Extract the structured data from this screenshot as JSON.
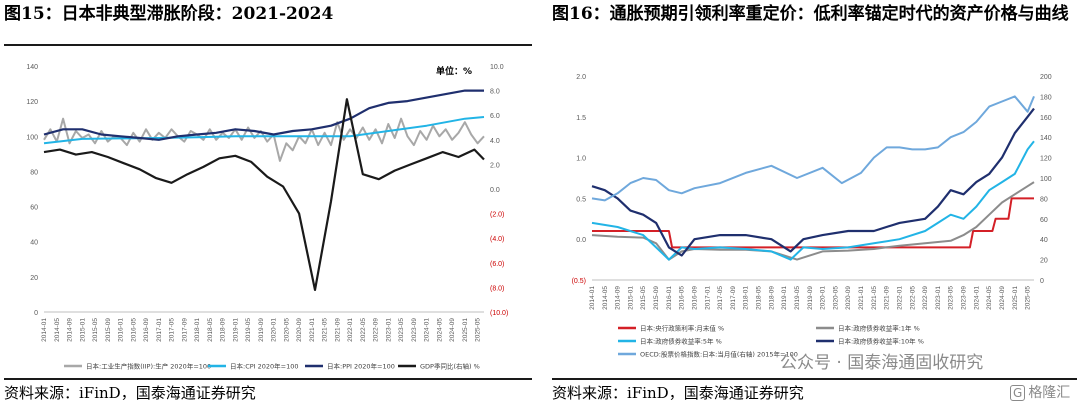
{
  "left": {
    "title": "图15：日本非典型滞胀阶段：2021-2024",
    "source": "资料来源：iFinD，国泰海通证券研究",
    "chart_data": {
      "type": "line",
      "unit_note": "单位：%",
      "x_ticks": [
        "2014-01",
        "2014-05",
        "2014-09",
        "2015-01",
        "2015-05",
        "2015-09",
        "2016-01",
        "2016-05",
        "2016-09",
        "2017-01",
        "2017-05",
        "2017-09",
        "2018-01",
        "2018-05",
        "2018-09",
        "2019-01",
        "2019-05",
        "2019-09",
        "2020-01",
        "2020-05",
        "2020-09",
        "2021-01",
        "2021-05",
        "2021-09",
        "2022-01",
        "2022-05",
        "2022-09",
        "2023-01",
        "2023-05",
        "2023-09",
        "2024-01",
        "2024-05",
        "2024-09",
        "2025-01",
        "2025-05"
      ],
      "y_left": {
        "range": [
          0,
          140
        ],
        "ticks": [
          "0",
          "20",
          "40",
          "60",
          "80",
          "100",
          "120",
          "140"
        ]
      },
      "y_right": {
        "range": [
          -10,
          10
        ],
        "ticks": [
          "10.0",
          "8.0",
          "6.0",
          "4.0",
          "2.0",
          "0.0",
          "(2.0)",
          "(4.0)",
          "(6.0)",
          "(8.0)",
          "(10.0)"
        ],
        "negative_color": "#cc0000"
      },
      "series": [
        {
          "name": "日本:工业生产指数(IIP):生产 2020年=100",
          "color": "#a8a8a8",
          "axis": "left",
          "x": [
            0,
            2,
            4,
            6,
            8,
            10,
            12,
            14,
            16,
            18,
            20,
            22,
            24,
            26,
            28,
            30,
            32,
            34,
            36,
            38,
            40,
            42,
            44,
            46,
            48,
            50,
            52,
            54,
            56,
            58,
            60,
            62,
            64,
            66,
            68,
            70,
            72,
            74,
            76,
            78,
            80,
            82,
            84,
            86,
            88,
            90,
            92,
            94,
            96,
            98,
            100,
            102,
            104,
            106,
            108,
            110,
            112,
            114,
            116,
            118,
            120,
            122,
            124,
            126,
            128,
            130,
            132,
            134,
            136,
            138
          ],
          "values": [
            98,
            104,
            97,
            110,
            96,
            103,
            99,
            101,
            96,
            103,
            97,
            100,
            99,
            95,
            102,
            97,
            104,
            98,
            102,
            99,
            104,
            100,
            97,
            103,
            101,
            98,
            104,
            98,
            102,
            99,
            104,
            98,
            105,
            99,
            103,
            97,
            101,
            86,
            96,
            92,
            100,
            96,
            104,
            95,
            102,
            95,
            108,
            98,
            104,
            99,
            105,
            98,
            104,
            96,
            107,
            99,
            110,
            100,
            95,
            103,
            98,
            106,
            100,
            104,
            98,
            102,
            108,
            101,
            96,
            100
          ]
        },
        {
          "name": "日本:CPI 2020年=100",
          "color": "#22b4e6",
          "axis": "left",
          "x": [
            0,
            12,
            24,
            36,
            48,
            60,
            72,
            84,
            96,
            108,
            120,
            132,
            138
          ],
          "values": [
            96,
            98.5,
            98.8,
            99,
            99.5,
            100,
            100,
            100,
            100,
            103,
            106,
            110,
            111
          ]
        },
        {
          "name": "日本:PPI 2020年=100",
          "color": "#1f2f6e",
          "axis": "left",
          "x": [
            0,
            6,
            12,
            18,
            24,
            30,
            36,
            42,
            48,
            54,
            60,
            66,
            72,
            78,
            84,
            90,
            96,
            102,
            108,
            114,
            120,
            126,
            132,
            138
          ],
          "values": [
            101,
            104,
            104,
            101,
            100,
            99,
            98,
            100,
            101,
            102,
            104,
            103,
            101,
            103,
            104,
            106,
            110,
            116,
            119,
            120,
            122,
            124,
            126,
            126
          ]
        },
        {
          "name": "GDP季同比(右轴) %",
          "color": "#1a1a1a",
          "axis": "right",
          "x": [
            0,
            5,
            10,
            15,
            20,
            25,
            30,
            35,
            40,
            45,
            50,
            55,
            60,
            65,
            70,
            75,
            80,
            85,
            90,
            95,
            100,
            105,
            110,
            115,
            120,
            125,
            130,
            135,
            138
          ],
          "values": [
            3.0,
            3.2,
            2.8,
            3.0,
            2.6,
            2.1,
            1.6,
            0.9,
            0.5,
            1.2,
            1.8,
            2.5,
            2.7,
            2.2,
            1.0,
            0.2,
            -2.0,
            -8.2,
            -1.0,
            7.3,
            1.2,
            0.8,
            1.5,
            2.0,
            2.5,
            3.0,
            2.6,
            3.2,
            2.4
          ]
        }
      ],
      "legend_placement": "bottom"
    }
  },
  "right": {
    "title": "图16：通胀预期引领利率重定价：低利率锚定时代的资产价格与曲线",
    "source": "资料来源：iFinD，国泰海通证券研究",
    "chart_data": {
      "type": "line",
      "x_ticks": [
        "2014-01",
        "2014-05",
        "2014-09",
        "2015-01",
        "2015-05",
        "2015-09",
        "2016-01",
        "2016-05",
        "2016-09",
        "2017-01",
        "2017-05",
        "2017-09",
        "2018-01",
        "2018-05",
        "2018-09",
        "2019-01",
        "2019-05",
        "2019-09",
        "2020-01",
        "2020-05",
        "2020-09",
        "2021-01",
        "2021-05",
        "2021-09",
        "2022-01",
        "2022-05",
        "2022-09",
        "2023-01",
        "2023-05",
        "2023-09",
        "2024-01",
        "2024-05",
        "2024-09",
        "2025-01",
        "2025-05"
      ],
      "y_left": {
        "range": [
          -0.5,
          2.0
        ],
        "ticks": [
          "2.0",
          "1.5",
          "1.0",
          "0.5",
          "0.0",
          "(0.5)"
        ],
        "negative_color": "#cc0000"
      },
      "y_right": {
        "range": [
          0,
          200
        ],
        "ticks": [
          "200",
          "180",
          "160",
          "140",
          "120",
          "100",
          "80",
          "60",
          "40",
          "20",
          "0"
        ]
      },
      "series": [
        {
          "name": "日本:央行政策利率:月末值 %",
          "color": "#d42027",
          "axis": "left",
          "x": [
            0,
            24,
            25,
            118,
            119,
            125,
            126,
            130,
            131,
            138
          ],
          "values": [
            0.1,
            0.1,
            -0.1,
            -0.1,
            0.1,
            0.1,
            0.25,
            0.25,
            0.5,
            0.5
          ]
        },
        {
          "name": "日本:政府债券收益率:1年 %",
          "color": "#8c8c8c",
          "axis": "left",
          "x": [
            0,
            8,
            16,
            20,
            24,
            28,
            32,
            40,
            48,
            56,
            64,
            72,
            80,
            88,
            96,
            104,
            112,
            116,
            120,
            124,
            128,
            132,
            136,
            138
          ],
          "values": [
            0.05,
            0.03,
            0.02,
            -0.05,
            -0.25,
            -0.15,
            -0.12,
            -0.13,
            -0.13,
            -0.15,
            -0.25,
            -0.15,
            -0.14,
            -0.12,
            -0.08,
            -0.05,
            -0.02,
            0.05,
            0.15,
            0.3,
            0.45,
            0.55,
            0.65,
            0.7
          ]
        },
        {
          "name": "日本:政府债券收益率:5年 %",
          "color": "#22b4e6",
          "axis": "left",
          "x": [
            0,
            8,
            16,
            20,
            24,
            28,
            32,
            40,
            48,
            56,
            62,
            66,
            72,
            80,
            88,
            96,
            104,
            108,
            112,
            116,
            120,
            124,
            128,
            132,
            136,
            138
          ],
          "values": [
            0.2,
            0.15,
            0.05,
            -0.1,
            -0.25,
            -0.1,
            -0.12,
            -0.1,
            -0.12,
            -0.15,
            -0.25,
            -0.1,
            -0.12,
            -0.1,
            -0.05,
            0.0,
            0.1,
            0.2,
            0.3,
            0.25,
            0.4,
            0.6,
            0.7,
            0.8,
            1.1,
            1.2
          ]
        },
        {
          "name": "日本:政府债券收益率:10年 %",
          "color": "#1f2f6e",
          "axis": "left",
          "x": [
            0,
            4,
            8,
            12,
            16,
            20,
            24,
            28,
            32,
            40,
            48,
            56,
            62,
            66,
            72,
            80,
            88,
            96,
            104,
            108,
            112,
            116,
            120,
            124,
            128,
            132,
            136,
            138
          ],
          "values": [
            0.65,
            0.6,
            0.5,
            0.35,
            0.3,
            0.2,
            -0.1,
            -0.2,
            0.0,
            0.05,
            0.05,
            0.0,
            -0.15,
            0.0,
            0.05,
            0.1,
            0.1,
            0.2,
            0.25,
            0.4,
            0.6,
            0.55,
            0.7,
            0.8,
            1.0,
            1.3,
            1.5,
            1.6
          ]
        },
        {
          "name": "OECD:股票价格指数:日本:当月值(右轴) 2015年=100",
          "color": "#6fa8dc",
          "axis": "right",
          "x": [
            0,
            4,
            8,
            12,
            16,
            20,
            24,
            28,
            32,
            40,
            48,
            56,
            64,
            72,
            78,
            84,
            88,
            92,
            96,
            100,
            104,
            108,
            112,
            116,
            120,
            124,
            128,
            132,
            136,
            138
          ],
          "values": [
            80,
            78,
            85,
            95,
            100,
            98,
            88,
            85,
            90,
            95,
            105,
            112,
            100,
            110,
            95,
            105,
            120,
            130,
            130,
            128,
            128,
            130,
            140,
            145,
            155,
            170,
            175,
            180,
            165,
            180
          ]
        }
      ],
      "legend_placement": "bottom"
    }
  },
  "watermark": {
    "text": "公众号 · 国泰海通固收研究",
    "logo_box": "G",
    "logo_text": "格隆汇"
  },
  "colors": {
    "title_text": "#000000",
    "axis_text": "#595959",
    "negative_tick": "#cc0000"
  }
}
